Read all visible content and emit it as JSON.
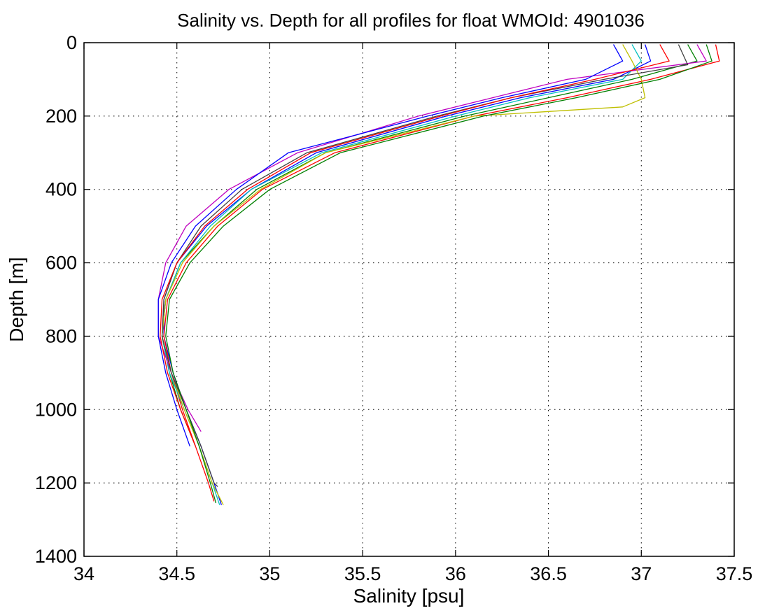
{
  "chart_data": {
    "type": "line",
    "title": "Salinity vs. Depth for all profiles for float WMOId: 4901036",
    "xlabel": "Salinity [psu]",
    "ylabel": "Depth [m]",
    "xlim": [
      34,
      37.5
    ],
    "ylim": [
      0,
      1400
    ],
    "y_inverted": true,
    "grid": true,
    "x_ticks": [
      "34",
      "34.5",
      "35",
      "35.5",
      "36",
      "36.5",
      "37",
      "37.5"
    ],
    "y_ticks": [
      "0",
      "200",
      "400",
      "600",
      "800",
      "1000",
      "1200",
      "1400"
    ],
    "series_colors": [
      "#0000ff",
      "#008000",
      "#ff0000",
      "#00bfbf",
      "#bf00bf",
      "#bfbf00",
      "#404040"
    ],
    "series": [
      {
        "depth": [
          5,
          50,
          100,
          150,
          200,
          300,
          400,
          500,
          600,
          700,
          800,
          900,
          1000,
          1100,
          1200,
          1260
        ],
        "salinity": [
          37.02,
          37.05,
          36.85,
          36.35,
          35.95,
          35.25,
          34.9,
          34.66,
          34.5,
          34.43,
          34.43,
          34.48,
          34.55,
          34.63,
          34.7,
          34.74
        ]
      },
      {
        "depth": [
          5,
          50,
          100,
          150,
          200,
          300,
          400,
          500,
          600,
          700,
          800,
          900,
          1000,
          1100
        ],
        "salinity": [
          37.25,
          37.3,
          36.95,
          36.5,
          36.05,
          35.3,
          34.93,
          34.7,
          34.52,
          34.44,
          34.42,
          34.46,
          34.52,
          34.6
        ]
      },
      {
        "depth": [
          5,
          50,
          100,
          150,
          200,
          300,
          400,
          500,
          600,
          700,
          800,
          900,
          1000,
          1100,
          1200,
          1250
        ],
        "salinity": [
          37.4,
          37.42,
          37.05,
          36.6,
          36.1,
          35.35,
          34.96,
          34.72,
          34.55,
          34.45,
          34.43,
          34.47,
          34.53,
          34.6,
          34.67,
          34.7
        ]
      },
      {
        "depth": [
          5,
          50,
          100,
          150,
          200,
          300,
          400,
          500,
          600,
          700,
          800,
          900,
          1000,
          1100,
          1200,
          1260
        ],
        "salinity": [
          36.95,
          37.0,
          36.9,
          36.4,
          36.0,
          35.28,
          34.9,
          34.68,
          34.52,
          34.44,
          34.42,
          34.46,
          34.54,
          34.62,
          34.69,
          34.73
        ]
      },
      {
        "depth": [
          5,
          50,
          100,
          150,
          200,
          300,
          400,
          500,
          600,
          700,
          800,
          900,
          1000,
          1060
        ],
        "salinity": [
          37.3,
          37.35,
          36.6,
          36.2,
          35.8,
          35.15,
          34.78,
          34.55,
          34.44,
          34.4,
          34.4,
          34.47,
          34.56,
          34.63
        ]
      },
      {
        "depth": [
          5,
          50,
          100,
          150,
          175,
          200,
          300,
          400,
          500,
          600,
          700,
          800,
          900,
          1000,
          1100,
          1200,
          1260
        ],
        "salinity": [
          36.9,
          36.95,
          37.0,
          37.02,
          36.9,
          36.1,
          35.3,
          34.95,
          34.7,
          34.53,
          34.44,
          34.42,
          34.47,
          34.54,
          34.62,
          34.69,
          34.75
        ]
      },
      {
        "depth": [
          5,
          60,
          100,
          150,
          200,
          300,
          400,
          500,
          600,
          700,
          800,
          900,
          1000,
          1100,
          1200,
          1210
        ],
        "salinity": [
          37.2,
          37.25,
          36.8,
          36.3,
          35.9,
          35.2,
          34.85,
          34.63,
          34.5,
          34.43,
          34.42,
          34.47,
          34.55,
          34.63,
          34.7,
          34.72
        ]
      },
      {
        "depth": [
          5,
          50,
          100,
          150,
          200,
          300,
          400,
          500,
          600,
          700,
          800,
          900,
          1000,
          1100
        ],
        "salinity": [
          36.85,
          36.9,
          36.7,
          36.25,
          35.85,
          35.1,
          34.82,
          34.6,
          34.47,
          34.4,
          34.4,
          34.44,
          34.5,
          34.57
        ]
      },
      {
        "depth": [
          5,
          50,
          100,
          150,
          200,
          300,
          400,
          500,
          600,
          700,
          800,
          900,
          1000,
          1100,
          1200,
          1255
        ],
        "salinity": [
          37.35,
          37.38,
          37.1,
          36.65,
          36.15,
          35.38,
          35.0,
          34.75,
          34.57,
          34.46,
          34.44,
          34.48,
          34.55,
          34.62,
          34.68,
          34.71
        ]
      },
      {
        "depth": [
          5,
          50,
          100,
          150,
          200,
          300,
          400,
          500,
          600,
          700,
          800,
          900,
          1000,
          1100
        ],
        "salinity": [
          37.1,
          37.15,
          36.75,
          36.3,
          35.92,
          35.22,
          34.88,
          34.65,
          34.5,
          34.42,
          34.41,
          34.45,
          34.52,
          34.6
        ]
      }
    ]
  }
}
